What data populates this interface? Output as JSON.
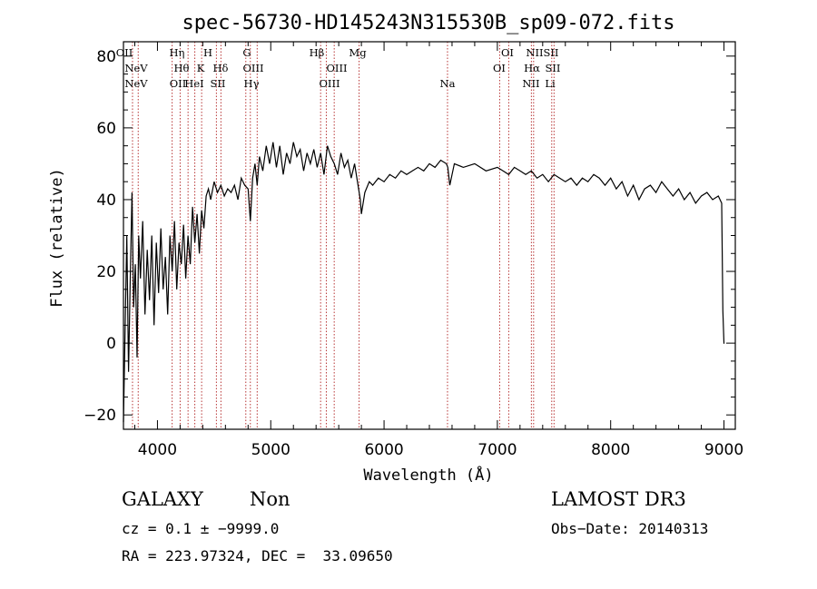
{
  "chart_data": {
    "type": "line",
    "title": "spec-56730-HD145243N315530B_sp09-072.fits",
    "xlabel": "Wavelength (Å)",
    "ylabel": "Flux (relative)",
    "xlim": [
      3700,
      9100
    ],
    "ylim": [
      -24,
      84
    ],
    "x_ticks": [
      4000,
      5000,
      6000,
      7000,
      8000,
      9000
    ],
    "y_ticks": [
      -20,
      0,
      20,
      40,
      60,
      80
    ],
    "x_tick_labels": [
      "4000",
      "5000",
      "6000",
      "7000",
      "8000",
      "9000"
    ],
    "y_tick_labels": [
      "−20",
      "0",
      "20",
      "40",
      "60",
      "80"
    ],
    "series": [
      {
        "name": "flux",
        "x": [
          3700,
          3715,
          3730,
          3745,
          3760,
          3775,
          3790,
          3805,
          3820,
          3835,
          3850,
          3870,
          3890,
          3910,
          3930,
          3950,
          3970,
          3990,
          4010,
          4030,
          4050,
          4070,
          4090,
          4110,
          4130,
          4150,
          4170,
          4190,
          4210,
          4230,
          4250,
          4270,
          4290,
          4310,
          4330,
          4350,
          4370,
          4390,
          4410,
          4430,
          4450,
          4470,
          4500,
          4530,
          4560,
          4590,
          4620,
          4650,
          4680,
          4710,
          4740,
          4770,
          4800,
          4820,
          4840,
          4861,
          4880,
          4900,
          4930,
          4960,
          4990,
          5020,
          5050,
          5080,
          5110,
          5140,
          5170,
          5200,
          5230,
          5260,
          5290,
          5320,
          5350,
          5380,
          5410,
          5440,
          5470,
          5500,
          5530,
          5560,
          5590,
          5620,
          5650,
          5680,
          5710,
          5740,
          5770,
          5790,
          5800,
          5830,
          5870,
          5900,
          5950,
          6000,
          6050,
          6100,
          6150,
          6200,
          6250,
          6300,
          6350,
          6400,
          6450,
          6500,
          6550,
          6563,
          6580,
          6620,
          6700,
          6800,
          6900,
          7000,
          7050,
          7100,
          7150,
          7200,
          7250,
          7300,
          7350,
          7400,
          7450,
          7500,
          7550,
          7600,
          7650,
          7700,
          7750,
          7800,
          7850,
          7900,
          7950,
          8000,
          8050,
          8100,
          8150,
          8200,
          8250,
          8300,
          8350,
          8400,
          8450,
          8500,
          8550,
          8600,
          8650,
          8700,
          8750,
          8800,
          8850,
          8900,
          8950,
          8980,
          8990,
          9000,
          9005
        ],
        "values": [
          -22,
          5,
          30,
          -8,
          18,
          42,
          10,
          22,
          -4,
          30,
          18,
          34,
          8,
          26,
          12,
          30,
          5,
          28,
          14,
          32,
          15,
          24,
          8,
          30,
          20,
          34,
          15,
          28,
          22,
          33,
          18,
          30,
          22,
          38,
          28,
          36,
          25,
          37,
          32,
          41,
          43,
          40,
          45,
          42,
          44,
          41,
          43,
          42,
          44,
          40,
          46,
          44,
          43,
          34,
          46,
          50,
          44,
          52,
          48,
          55,
          50,
          56,
          49,
          55,
          47,
          53,
          50,
          56,
          52,
          54,
          48,
          53,
          50,
          54,
          49,
          53,
          47,
          55,
          52,
          50,
          47,
          53,
          49,
          51,
          46,
          50,
          44,
          40,
          36,
          42,
          45,
          44,
          46,
          45,
          47,
          46,
          48,
          47,
          48,
          49,
          48,
          50,
          49,
          51,
          50,
          49,
          44,
          50,
          49,
          50,
          48,
          49,
          48,
          47,
          49,
          48,
          47,
          48,
          46,
          47,
          45,
          47,
          46,
          45,
          46,
          44,
          46,
          45,
          47,
          46,
          44,
          46,
          43,
          45,
          41,
          44,
          40,
          43,
          44,
          42,
          45,
          43,
          41,
          43,
          40,
          42,
          39,
          41,
          42,
          40,
          41,
          39,
          9,
          0,
          0
        ]
      }
    ],
    "spectral_lines": [
      {
        "label": "NeV",
        "wave": 3426,
        "row": 1
      },
      {
        "label": "NeV",
        "wave": 3346,
        "row": 2
      },
      {
        "label": "OII",
        "wave": 3727,
        "row": 0
      },
      {
        "label": "Hη",
        "wave": 3835,
        "row": 0
      },
      {
        "label": "H",
        "wave": 3970,
        "row": 0
      },
      {
        "label": "Hθ",
        "wave": 3798,
        "row": 1
      },
      {
        "label": "K",
        "wave": 3934,
        "row": 1
      },
      {
        "label": "Hδ",
        "wave": 4102,
        "row": 1
      },
      {
        "label": "OII",
        "wave": 3727,
        "row": 2
      },
      {
        "label": "HeI",
        "wave": 3889,
        "row": 2
      },
      {
        "label": "SII",
        "wave": 4072,
        "row": 2
      },
      {
        "label": "G",
        "wave": 4304,
        "row": 0
      },
      {
        "label": "OIII",
        "wave": 4363,
        "row": 1
      },
      {
        "label": "Hγ",
        "wave": 4340,
        "row": 2
      },
      {
        "label": "Hβ",
        "wave": 4861,
        "row": 0
      },
      {
        "label": "Mg",
        "wave": 5175,
        "row": 0
      },
      {
        "label": "OIII",
        "wave": 4959,
        "row": 1
      },
      {
        "label": "OIII",
        "wave": 5007,
        "row": 2
      },
      {
        "label": "Na",
        "wave": 5893,
        "row": 2
      },
      {
        "label": "OI",
        "wave": 6300,
        "row": 0
      },
      {
        "label": "OI",
        "wave": 6364,
        "row": 1
      },
      {
        "label": "NII",
        "wave": 6583,
        "row": 0
      },
      {
        "label": "SII",
        "wave": 6716,
        "row": 0
      },
      {
        "label": "Hα",
        "wave": 6563,
        "row": 1
      },
      {
        "label": "SII",
        "wave": 6731,
        "row": 1
      },
      {
        "label": "NII",
        "wave": 6548,
        "row": 2
      },
      {
        "label": "Li",
        "wave": 6708,
        "row": 2
      }
    ],
    "line_marker_x": [
      3780,
      3830,
      4130,
      4200,
      4270,
      4330,
      4390,
      4520,
      4560,
      4780,
      4820,
      4880,
      5440,
      5490,
      5560,
      5780,
      6560,
      7020,
      7100,
      7300,
      7320,
      7480,
      7500
    ]
  },
  "footer": {
    "object_class": "GALAXY",
    "subclass": "Non",
    "cz": "cz = 0.1 ± −9999.0",
    "coords": "RA = 223.97324, DEC =  33.09650",
    "survey": "LAMOST DR3",
    "obs_date": "Obs−Date: 20140313"
  },
  "colors": {
    "line": "#000000",
    "marker": "#b02020"
  }
}
